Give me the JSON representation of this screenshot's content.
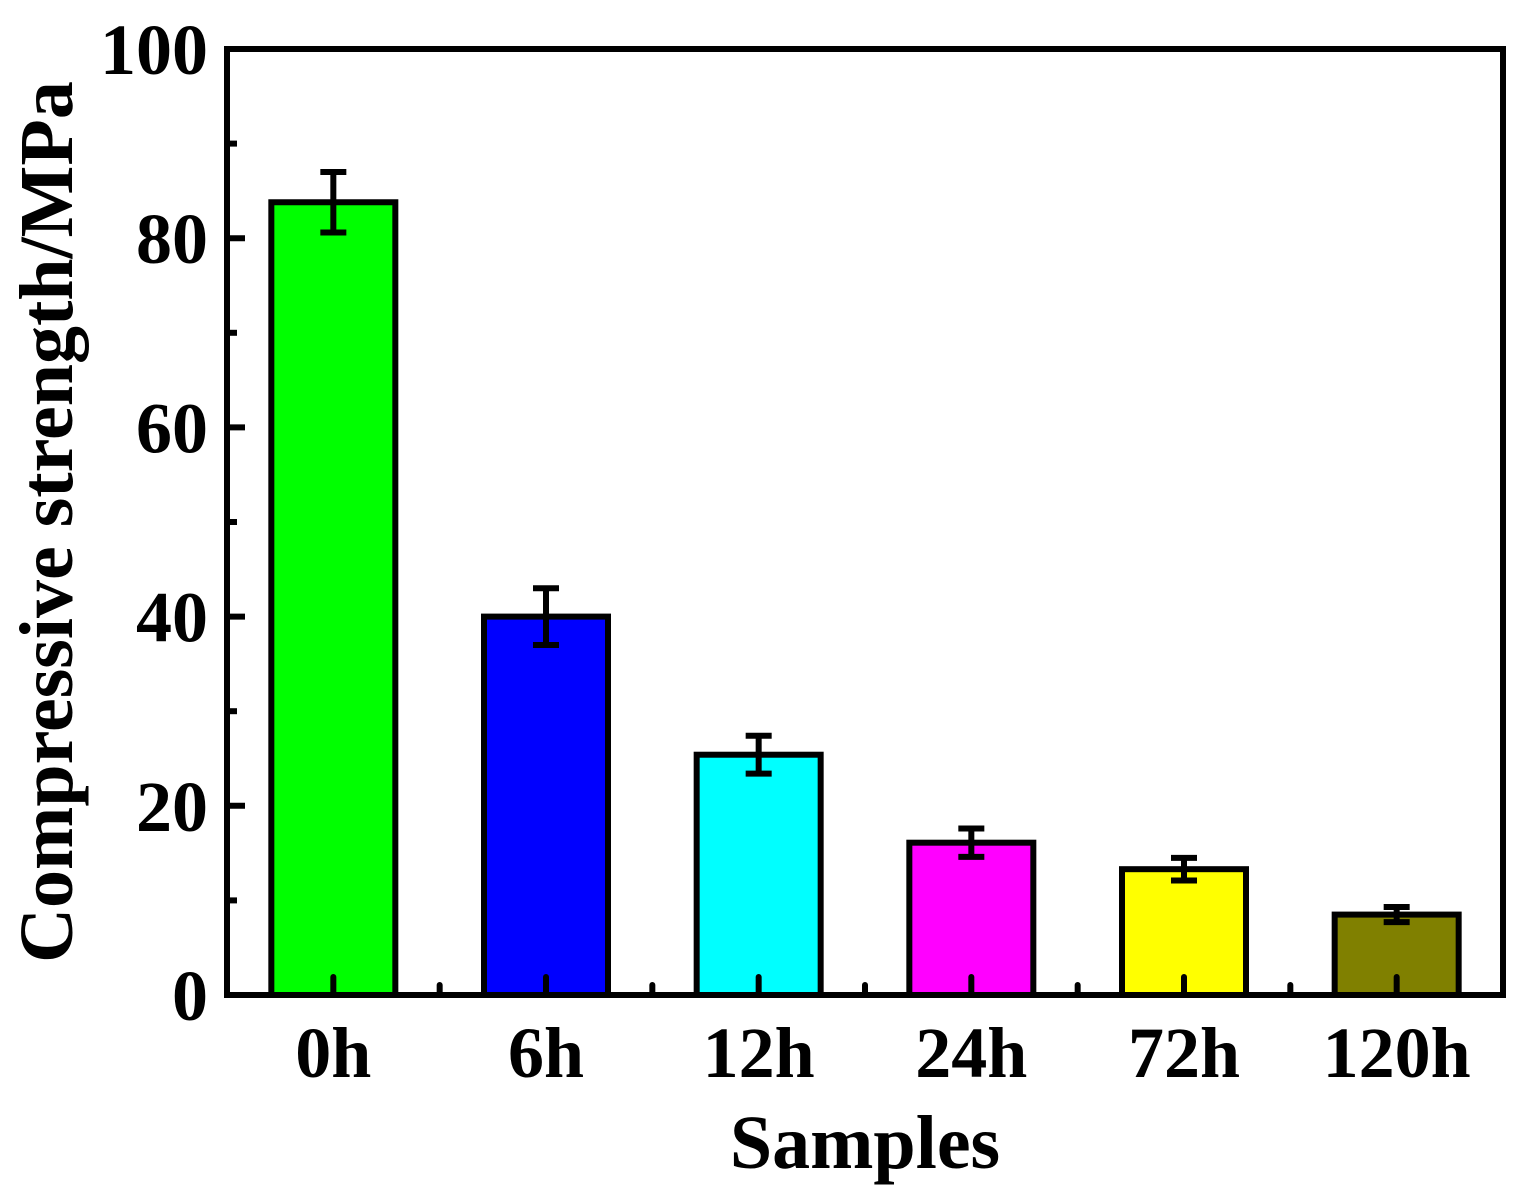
{
  "chart_data": {
    "type": "bar",
    "title": "",
    "xlabel": "Samples",
    "ylabel": "Compressive strength/MPa",
    "categories": [
      "0h",
      "6h",
      "12h",
      "24h",
      "72h",
      "120h"
    ],
    "values": [
      83.8,
      40.0,
      25.4,
      16.1,
      13.3,
      8.5
    ],
    "errors": [
      3.2,
      3.0,
      2.0,
      1.5,
      1.2,
      0.8
    ],
    "colors": [
      "#00ff00",
      "#0000ff",
      "#00ffff",
      "#ff00ff",
      "#ffff00",
      "#808000"
    ],
    "ylim": [
      0,
      100
    ],
    "yticks": [
      0,
      20,
      40,
      60,
      80,
      100
    ],
    "yticks_minor": [
      10,
      30,
      50,
      70,
      90
    ],
    "grid": false,
    "legend": "none"
  }
}
